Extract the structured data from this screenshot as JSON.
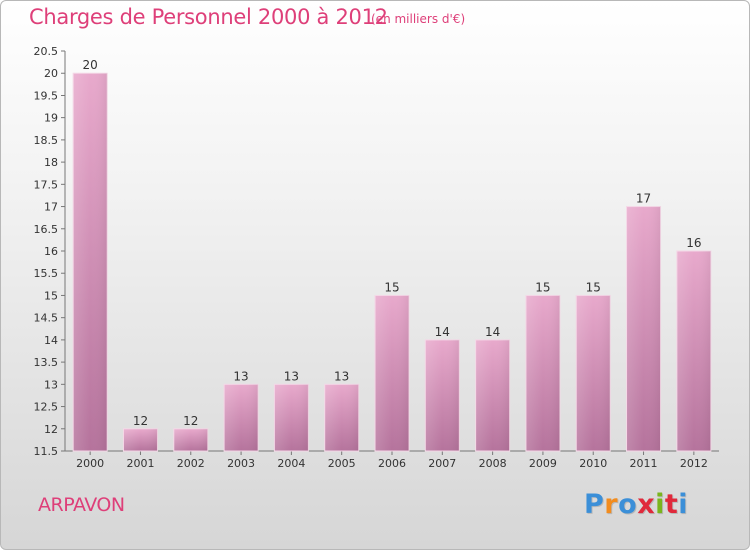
{
  "header": {
    "title": "Charges de Personnel 2000 à 2012",
    "subtitle": "(en milliers d'€)"
  },
  "footer": {
    "place": "ARPAVON",
    "logo_text": "Proxiti"
  },
  "colors": {
    "accent": "#de3f79",
    "bar_top": "#e8a9cc",
    "bar_bottom": "#b5739c",
    "logo": [
      "#3b8fd8",
      "#f28c1e",
      "#3b8fd8",
      "#e0293b",
      "#7ab51d",
      "#e0293b",
      "#3b8fd8"
    ]
  },
  "chart_data": {
    "type": "bar",
    "categories": [
      "2000",
      "2001",
      "2002",
      "2003",
      "2004",
      "2005",
      "2006",
      "2007",
      "2008",
      "2009",
      "2010",
      "2011",
      "2012"
    ],
    "values": [
      20,
      12,
      12,
      13,
      13,
      13,
      15,
      14,
      14,
      15,
      15,
      17,
      16
    ],
    "data_labels": [
      "20",
      "12",
      "12",
      "13",
      "13",
      "13",
      "15",
      "14",
      "14",
      "15",
      "15",
      "17",
      "16"
    ],
    "title": "Charges de Personnel 2000 à 2012",
    "subtitle": "(en milliers d'€)",
    "xlabel": "",
    "ylabel": "",
    "ylim": [
      11.5,
      20.5
    ],
    "yticks": [
      "11.5",
      "12",
      "12.5",
      "13",
      "13.5",
      "14",
      "14.5",
      "15",
      "15.5",
      "16",
      "16.5",
      "17",
      "17.5",
      "18",
      "18.5",
      "19",
      "19.5",
      "20",
      "20.5"
    ],
    "grid": false,
    "legend": "none"
  }
}
